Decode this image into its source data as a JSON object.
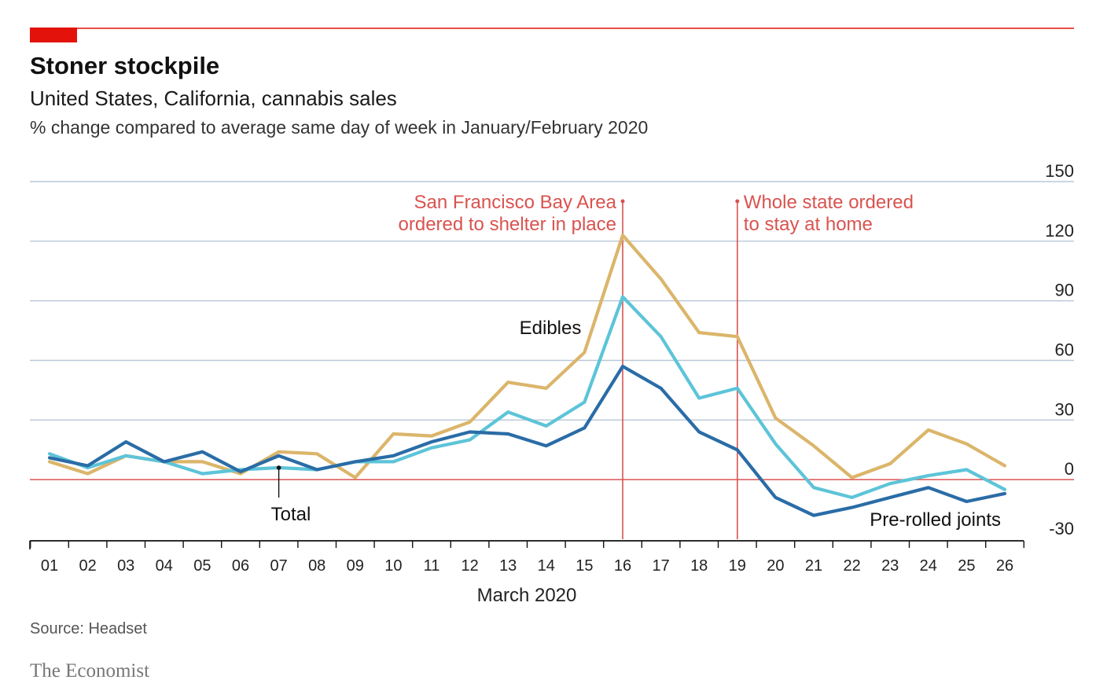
{
  "header": {
    "title": "Stoner stockpile",
    "subtitle": "United States, California, cannabis sales",
    "note": "% change compared to average same day of week in January/February 2020",
    "accent_color": "#e3120b"
  },
  "footer": {
    "source": "Source: Headset",
    "brand": "The Economist"
  },
  "chart_data": {
    "type": "line",
    "title": "Stoner stockpile",
    "subtitle": "United States, California, cannabis sales",
    "ylabel": "% change compared to average same day of week in January/February 2020",
    "xlabel": "March 2020",
    "categories": [
      "01",
      "02",
      "03",
      "04",
      "05",
      "06",
      "07",
      "08",
      "09",
      "10",
      "11",
      "12",
      "13",
      "14",
      "15",
      "16",
      "17",
      "18",
      "19",
      "20",
      "21",
      "22",
      "23",
      "24",
      "25",
      "26"
    ],
    "ylim": [
      -30,
      150
    ],
    "yticks": [
      150,
      120,
      90,
      60,
      30,
      0,
      -30
    ],
    "grid": true,
    "series": [
      {
        "name": "Edibles",
        "color": "#dbb56a",
        "values": [
          9,
          3,
          12,
          9,
          9,
          3,
          14,
          13,
          1,
          23,
          22,
          29,
          49,
          46,
          64,
          123,
          101,
          74,
          72,
          31,
          17,
          1,
          8,
          25,
          18,
          7
        ]
      },
      {
        "name": "Total",
        "color": "#5dc4d8",
        "values": [
          13,
          6,
          12,
          9,
          3,
          5,
          6,
          5,
          9,
          9,
          16,
          20,
          34,
          27,
          39,
          92,
          72,
          41,
          46,
          18,
          -4,
          -9,
          -2,
          2,
          5,
          -5
        ]
      },
      {
        "name": "Pre-rolled joints",
        "color": "#2a6ca6",
        "values": [
          11,
          7,
          19,
          9,
          14,
          4,
          12,
          5,
          9,
          12,
          19,
          24,
          23,
          17,
          26,
          57,
          46,
          24,
          15,
          -9,
          -18,
          -14,
          -9,
          -4,
          -11,
          -7
        ]
      }
    ],
    "annotations": [
      {
        "category": "16",
        "lines": [
          "San Francisco Bay Area",
          "ordered to shelter in place"
        ],
        "color": "#d9534f"
      },
      {
        "category": "19",
        "lines": [
          "Whole state ordered",
          "to stay at home"
        ],
        "color": "#d9534f"
      }
    ],
    "series_labels": [
      "Edibles",
      "Total",
      "Pre-rolled joints"
    ]
  }
}
